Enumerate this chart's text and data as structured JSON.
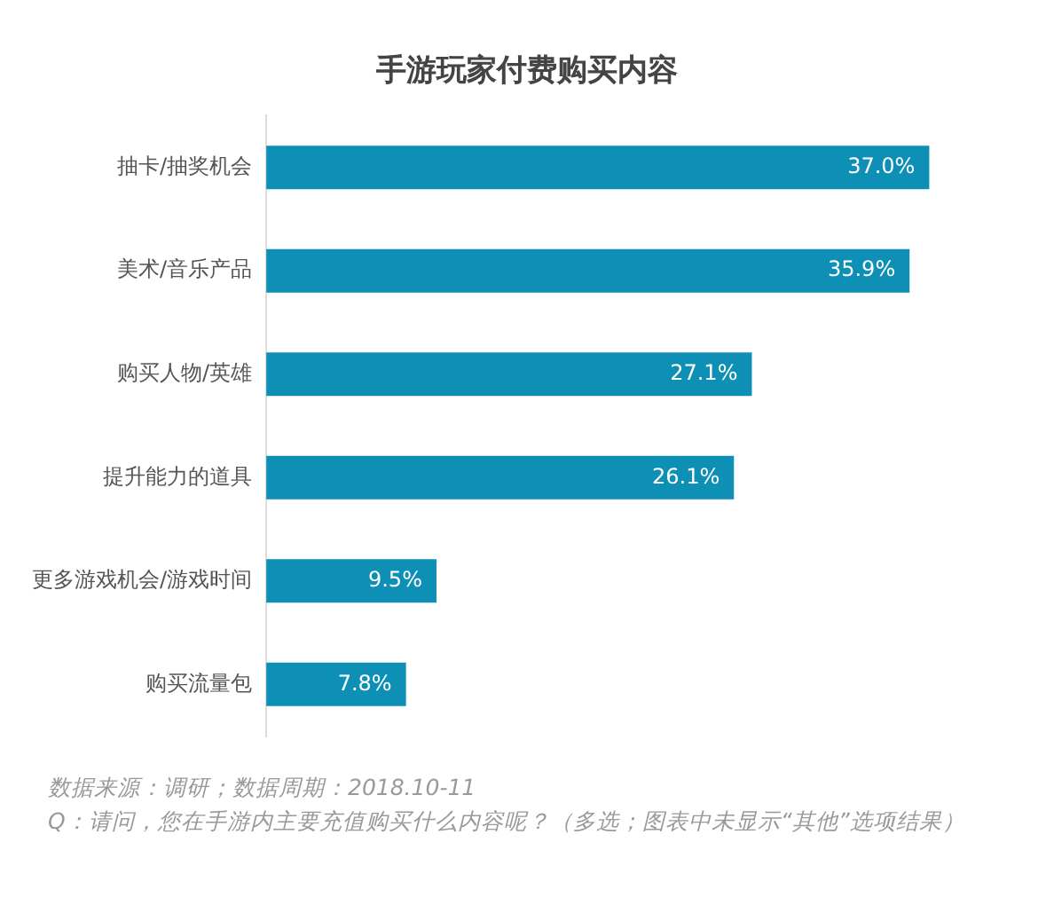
{
  "chart_data": {
    "type": "bar",
    "orientation": "horizontal",
    "title": "手游玩家付费购买内容",
    "categories": [
      "抽卡/抽奖机会",
      "美术/音乐产品",
      "购买人物/英雄",
      "提升能力的道具",
      "更多游戏机会/游戏时间",
      "购买流量包"
    ],
    "values": [
      37.0,
      35.9,
      27.1,
      26.1,
      9.5,
      7.8
    ],
    "value_labels": [
      "37.0%",
      "35.9%",
      "27.1%",
      "26.1%",
      "9.5%",
      "7.8%"
    ],
    "color": "#0e8fb5",
    "annotations": [
      "数据来源：调研；数据周期：2018.10-11",
      "Q：请问，您在手游内主要充值购买什么内容呢？（多选；图表中未显示“其他”选项结果）"
    ]
  }
}
